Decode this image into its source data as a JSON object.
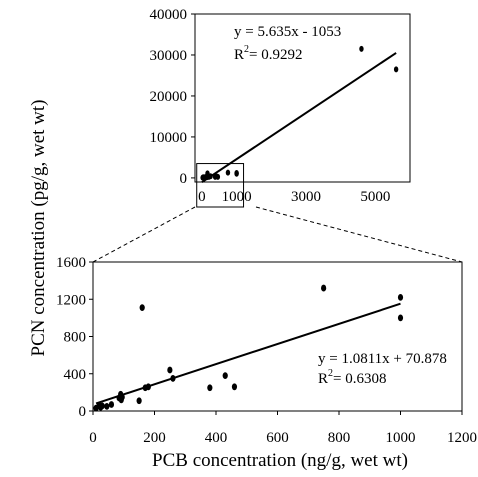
{
  "chart_data": [
    {
      "type": "scatter",
      "title": "",
      "xlabel": "",
      "ylabel": "",
      "xlim": [
        -200,
        6000
      ],
      "ylim": [
        -1000,
        40000
      ],
      "x_ticks": [
        0,
        1000,
        3000,
        5000
      ],
      "x_tick_labels": [
        "0",
        "1000",
        "3000",
        "5000"
      ],
      "y_ticks": [
        0,
        10000,
        20000,
        30000,
        40000
      ],
      "y_tick_labels": [
        "0",
        "10000",
        "20000",
        "30000",
        "40000"
      ],
      "grid": false,
      "points": [
        {
          "x": 20,
          "y": 60
        },
        {
          "x": 40,
          "y": 150
        },
        {
          "x": 60,
          "y": 100
        },
        {
          "x": 80,
          "y": 120
        },
        {
          "x": 100,
          "y": 200
        },
        {
          "x": 150,
          "y": 180
        },
        {
          "x": 160,
          "y": 1100
        },
        {
          "x": 200,
          "y": 250
        },
        {
          "x": 250,
          "y": 400
        },
        {
          "x": 380,
          "y": 250
        },
        {
          "x": 430,
          "y": 350
        },
        {
          "x": 460,
          "y": 260
        },
        {
          "x": 750,
          "y": 1300
        },
        {
          "x": 1000,
          "y": 1200
        },
        {
          "x": 1000,
          "y": 1000
        },
        {
          "x": 4600,
          "y": 31500
        },
        {
          "x": 5600,
          "y": 26500
        }
      ],
      "fit_line": {
        "x": [
          0,
          5600
        ],
        "y": [
          -1053,
          30503
        ]
      },
      "equation": "y = 5.635x - 1053",
      "r_squared_label": "R",
      "r_squared_sup": "2",
      "r_squared_value": "= 0.9292",
      "zoom_box": {
        "x": [
          -150,
          1200
        ],
        "y": [
          -1000,
          3500
        ]
      }
    },
    {
      "type": "scatter",
      "title": "",
      "xlabel": "PCB concentration (ng/g, wet wt)",
      "ylabel": "PCN concentration (pg/g, wet wt)",
      "xlim": [
        0,
        1200
      ],
      "ylim": [
        0,
        1600
      ],
      "x_ticks": [
        0,
        200,
        400,
        600,
        800,
        1000,
        1200
      ],
      "y_ticks": [
        0,
        400,
        800,
        1200,
        1600
      ],
      "grid": false,
      "points": [
        {
          "x": 10,
          "y": 30
        },
        {
          "x": 20,
          "y": 60
        },
        {
          "x": 25,
          "y": 40
        },
        {
          "x": 30,
          "y": 55
        },
        {
          "x": 45,
          "y": 50
        },
        {
          "x": 60,
          "y": 70
        },
        {
          "x": 85,
          "y": 140
        },
        {
          "x": 90,
          "y": 180
        },
        {
          "x": 92,
          "y": 120
        },
        {
          "x": 95,
          "y": 150
        },
        {
          "x": 150,
          "y": 110
        },
        {
          "x": 160,
          "y": 1110
        },
        {
          "x": 170,
          "y": 250
        },
        {
          "x": 180,
          "y": 260
        },
        {
          "x": 250,
          "y": 440
        },
        {
          "x": 260,
          "y": 350
        },
        {
          "x": 380,
          "y": 250
        },
        {
          "x": 430,
          "y": 380
        },
        {
          "x": 460,
          "y": 260
        },
        {
          "x": 750,
          "y": 1320
        },
        {
          "x": 1000,
          "y": 1220
        },
        {
          "x": 1000,
          "y": 1000
        }
      ],
      "fit_line": {
        "x": [
          10,
          1000
        ],
        "y": [
          81.7,
          1152
        ]
      },
      "equation": "y = 1.0811x + 70.878",
      "r_squared_label": "R",
      "r_squared_sup": "2",
      "r_squared_value": "= 0.6308"
    }
  ]
}
